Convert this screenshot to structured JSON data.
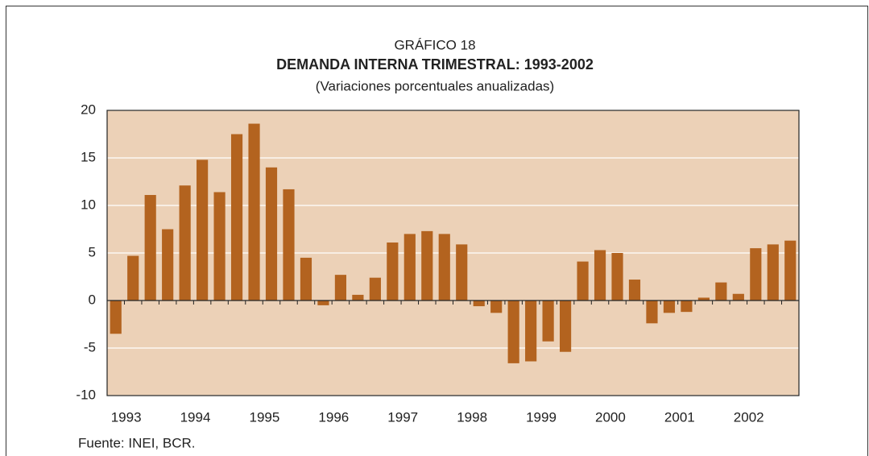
{
  "chart_data": {
    "type": "bar",
    "supertitle": "GRÁFICO 18",
    "title": "DEMANDA INTERNA TRIMESTRAL: 1993-2002",
    "subtitle": "(Variaciones porcentuales anualizadas)",
    "source": "Fuente: INEI, BCR.",
    "categories": [
      "1993",
      null,
      null,
      null,
      "1994",
      null,
      null,
      null,
      "1995",
      null,
      null,
      null,
      "1996",
      null,
      null,
      null,
      "1997",
      null,
      null,
      null,
      "1998",
      null,
      null,
      null,
      "1999",
      null,
      null,
      null,
      "2000",
      null,
      null,
      null,
      "2001",
      null,
      null,
      null,
      "2002",
      null,
      null,
      null
    ],
    "values": [
      -3.5,
      4.7,
      11.1,
      7.5,
      12.1,
      14.8,
      11.4,
      17.5,
      18.6,
      14.0,
      11.7,
      4.5,
      -0.5,
      2.7,
      0.6,
      2.4,
      6.1,
      7.0,
      7.3,
      7.0,
      5.9,
      -0.6,
      -1.3,
      -6.6,
      -6.4,
      -4.3,
      -5.4,
      4.1,
      5.3,
      5.0,
      2.2,
      -2.4,
      -1.3,
      -1.2,
      0.3,
      1.9,
      0.7,
      5.5,
      5.9,
      6.3
    ],
    "color": "#b3631f",
    "background": "#ecd1b7",
    "ylim": [
      -10,
      20
    ],
    "yticks": [
      -10,
      -5,
      0,
      5,
      10,
      15,
      20
    ],
    "grid": true
  }
}
